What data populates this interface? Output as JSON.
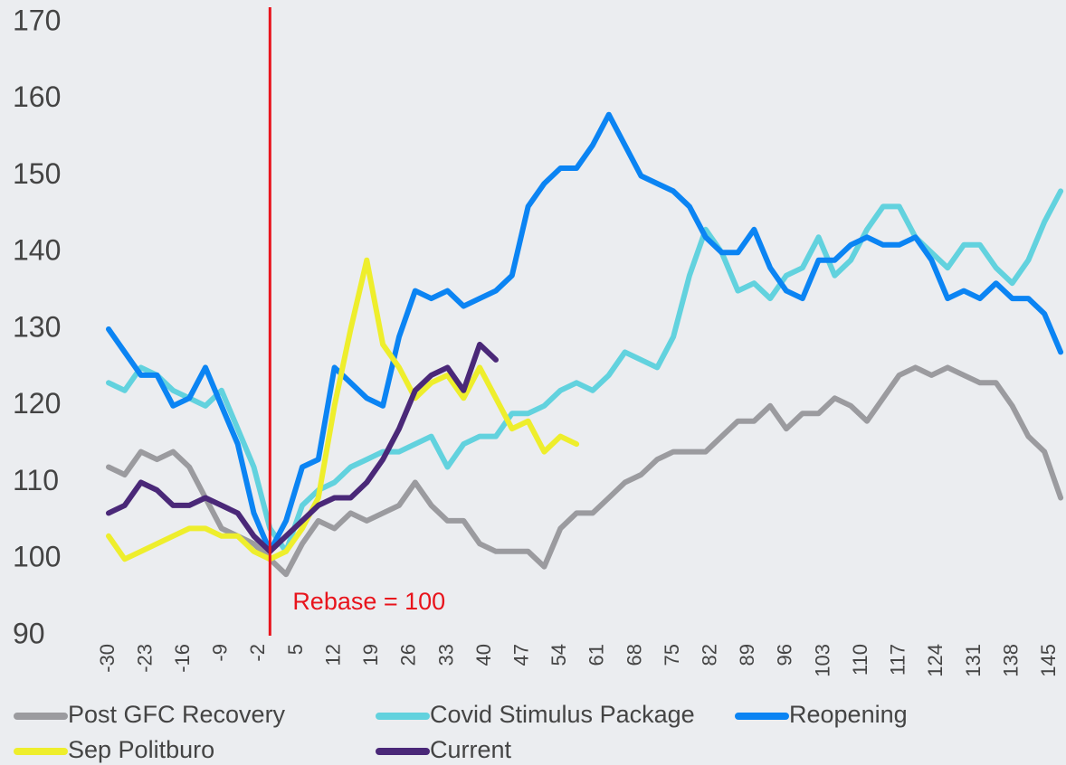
{
  "chart_data": {
    "type": "line",
    "x": [
      -30,
      -27,
      -24,
      -21,
      -18,
      -15,
      -12,
      -9,
      -6,
      -3,
      0,
      3,
      6,
      9,
      12,
      15,
      18,
      21,
      24,
      27,
      30,
      33,
      36,
      39,
      42,
      45,
      48,
      51,
      54,
      57,
      60,
      63,
      66,
      69,
      72,
      75,
      78,
      81,
      84,
      87,
      90,
      93,
      96,
      99,
      102,
      105,
      108,
      111,
      114,
      117,
      120,
      123,
      126,
      129,
      132,
      135,
      138,
      141,
      144,
      147
    ],
    "series": [
      {
        "name": "Post GFC Recovery",
        "color": "#9b9b9f",
        "values": [
          112,
          111,
          114,
          113,
          114,
          112,
          108,
          104,
          103,
          102,
          100,
          98,
          102,
          105,
          104,
          106,
          105,
          106,
          107,
          110,
          107,
          105,
          105,
          102,
          101,
          101,
          101,
          99,
          104,
          106,
          106,
          108,
          110,
          111,
          113,
          114,
          114,
          114,
          116,
          118,
          118,
          120,
          117,
          119,
          119,
          121,
          120,
          118,
          121,
          124,
          125,
          124,
          125,
          124,
          123,
          123,
          120,
          116,
          114,
          108
        ]
      },
      {
        "name": "Covid Stimulus Package",
        "color": "#62d2de",
        "values": [
          123,
          122,
          125,
          124,
          122,
          121,
          120,
          122,
          117,
          112,
          104,
          101,
          107,
          109,
          110,
          112,
          113,
          114,
          114,
          115,
          116,
          112,
          115,
          116,
          116,
          119,
          119,
          120,
          122,
          123,
          122,
          124,
          127,
          126,
          125,
          129,
          137,
          143,
          140,
          135,
          136,
          134,
          137,
          138,
          142,
          137,
          139,
          143,
          146,
          146,
          142,
          140,
          138,
          141,
          141,
          138,
          136,
          139,
          144,
          148
        ]
      },
      {
        "name": "Reopening",
        "color": "#0b84f3",
        "values": [
          130,
          127,
          124,
          124,
          120,
          121,
          125,
          120,
          115,
          106,
          101,
          105,
          112,
          113,
          125,
          123,
          121,
          120,
          129,
          135,
          134,
          135,
          133,
          134,
          135,
          137,
          146,
          149,
          151,
          151,
          154,
          158,
          154,
          150,
          149,
          148,
          146,
          142,
          140,
          140,
          143,
          138,
          135,
          134,
          139,
          139,
          141,
          142,
          141,
          141,
          142,
          139,
          134,
          135,
          134,
          136,
          134,
          134,
          132,
          127
        ]
      },
      {
        "name": "Sep Politburo",
        "color": "#eeee2c",
        "values": [
          103,
          100,
          101,
          102,
          103,
          104,
          104,
          103,
          103,
          101,
          100,
          101,
          104,
          108,
          120,
          130,
          139,
          128,
          125,
          121,
          123,
          124,
          121,
          125,
          121,
          117,
          118,
          114,
          116,
          115,
          null,
          null,
          null,
          null,
          null,
          null,
          null,
          null,
          null,
          null,
          null,
          null,
          null,
          null,
          null,
          null,
          null,
          null,
          null,
          null,
          null,
          null,
          null,
          null,
          null,
          null,
          null,
          null,
          null,
          null
        ]
      },
      {
        "name": "Current",
        "color": "#4a2878",
        "values": [
          106,
          107,
          110,
          109,
          107,
          107,
          108,
          107,
          106,
          103,
          101,
          103,
          105,
          107,
          108,
          108,
          110,
          113,
          117,
          122,
          124,
          125,
          122,
          128,
          126,
          null,
          null,
          null,
          null,
          null,
          null,
          null,
          null,
          null,
          null,
          null,
          null,
          null,
          null,
          null,
          null,
          null,
          null,
          null,
          null,
          null,
          null,
          null,
          null,
          null,
          null,
          null,
          null,
          null,
          null,
          null,
          null,
          null,
          null,
          null
        ]
      }
    ],
    "xlim": [
      -30,
      148
    ],
    "xticks": [
      -30,
      -23,
      -16,
      -9,
      -2,
      5,
      12,
      19,
      26,
      33,
      40,
      47,
      54,
      61,
      68,
      75,
      82,
      89,
      96,
      103,
      110,
      117,
      124,
      131,
      138,
      145
    ],
    "ylim": [
      90,
      170
    ],
    "yticks": [
      90,
      100,
      110,
      120,
      130,
      140,
      150,
      160,
      170
    ],
    "vline": {
      "x": 0,
      "label": "Rebase = 100",
      "color": "#e8141c"
    },
    "legend": "bottom"
  }
}
